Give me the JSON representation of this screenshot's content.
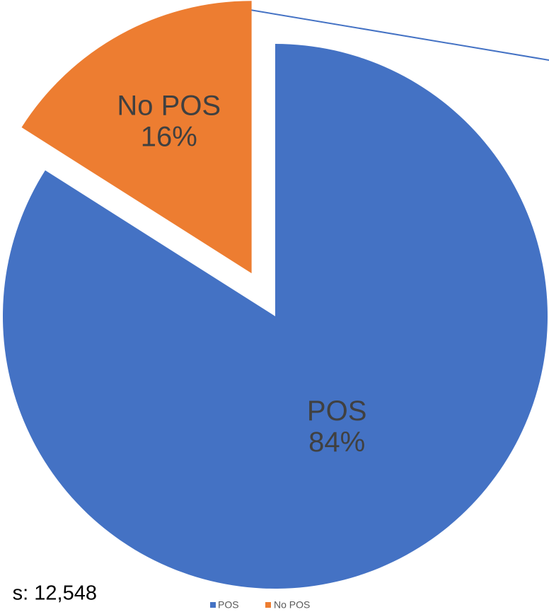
{
  "chart_data": {
    "type": "pie",
    "categories": [
      "POS",
      "No POS"
    ],
    "values": [
      84,
      16
    ],
    "value_labels": [
      "84%",
      "16%"
    ],
    "colors": [
      "#4472c4",
      "#ed7d31"
    ],
    "explode": [
      0,
      0.18
    ],
    "annotation": "s: 12,548",
    "legend": "bottom"
  }
}
